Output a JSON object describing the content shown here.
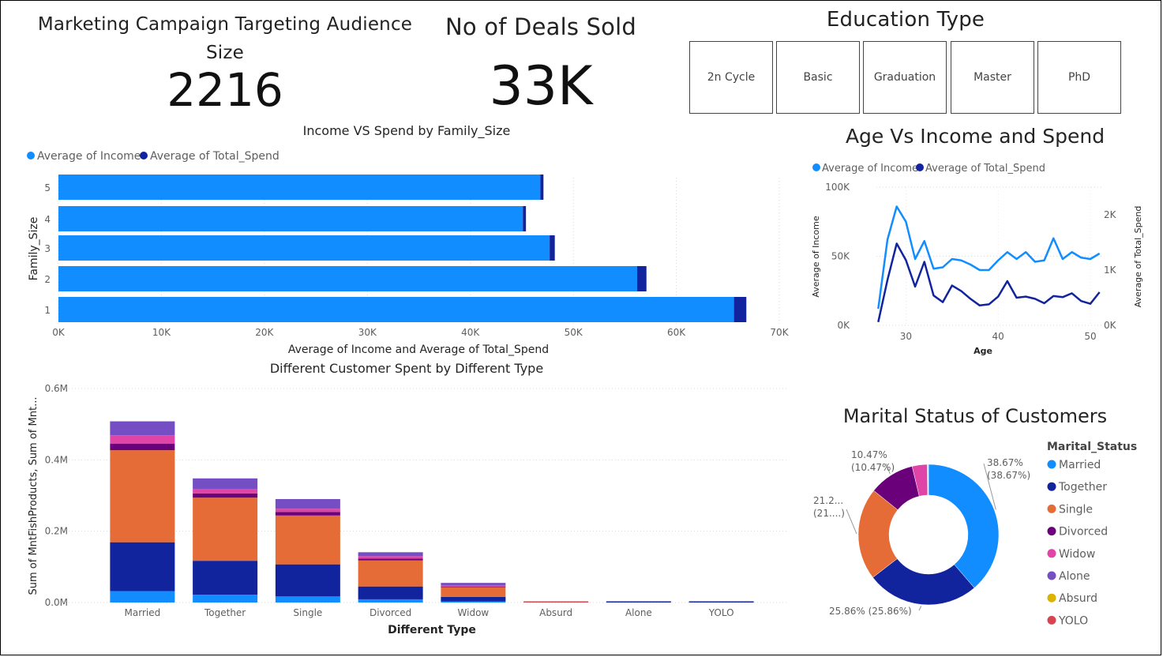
{
  "kpis": {
    "audience": {
      "title": "Marketing Campaign Targeting Audience Size",
      "value": "2216"
    },
    "deals": {
      "title": "No of Deals Sold",
      "value": "33K"
    }
  },
  "slicer": {
    "title": "Education Type",
    "options": [
      "2n Cycle",
      "Basic",
      "Graduation",
      "Master",
      "PhD"
    ]
  },
  "colors": {
    "income": "#118DFF",
    "spend": "#12239E",
    "married": "#118DFF",
    "together": "#12239E",
    "single": "#E66C37",
    "divorced": "#6B007B",
    "widow": "#E044A7",
    "alone": "#744EC2",
    "absurd": "#D9B300",
    "yolo": "#D64550"
  },
  "chart_data": [
    {
      "id": "family",
      "type": "bar",
      "orientation": "horizontal",
      "stacked": true,
      "title": "Income VS Spend by Family_Size",
      "xlabel": "Average of Income and Average of Total_Spend",
      "ylabel": "Family_Size",
      "categories": [
        "5",
        "4",
        "3",
        "2",
        "1"
      ],
      "series": [
        {
          "name": "Average of Income",
          "values": [
            46800,
            45100,
            47700,
            56200,
            65600
          ]
        },
        {
          "name": "Average of Total_Spend",
          "values": [
            300,
            300,
            500,
            900,
            1200
          ]
        }
      ],
      "xlim": [
        0,
        70000
      ],
      "xticks": [
        "0K",
        "10K",
        "20K",
        "30K",
        "40K",
        "50K",
        "60K",
        "70K"
      ],
      "legend": "top-left"
    },
    {
      "id": "age",
      "type": "line",
      "title": "Age Vs Income and Spend",
      "xlabel": "Age",
      "ylabel": "Average of Income",
      "y2label": "Average of Total_Spend",
      "x": [
        27,
        28,
        29,
        30,
        31,
        32,
        33,
        34,
        35,
        36,
        37,
        38,
        39,
        40,
        41,
        42,
        43,
        44,
        45,
        46,
        47,
        48,
        49,
        50,
        51
      ],
      "series": [
        {
          "name": "Average of Income",
          "axis": "left",
          "values": [
            12000,
            62000,
            86000,
            75000,
            48000,
            61000,
            41000,
            42000,
            48000,
            47000,
            44000,
            40000,
            40000,
            47000,
            53000,
            48000,
            53000,
            46000,
            47000,
            63000,
            48000,
            53000,
            49000,
            48000,
            52000
          ]
        },
        {
          "name": "Average of Total_Spend",
          "axis": "right",
          "values": [
            60,
            820,
            1480,
            1180,
            700,
            1150,
            540,
            420,
            720,
            620,
            480,
            360,
            380,
            520,
            800,
            500,
            520,
            480,
            400,
            530,
            510,
            580,
            440,
            390,
            600
          ]
        }
      ],
      "xlim": [
        26.8,
        51.2
      ],
      "ylim": [
        0,
        100000
      ],
      "y2lim": [
        0,
        2500
      ],
      "xticks": [
        "30",
        "40",
        "50"
      ],
      "yticks": [
        "0K",
        "50K",
        "100K"
      ],
      "y2ticks": [
        "0K",
        "1K",
        "2K"
      ],
      "legend": "top-left"
    },
    {
      "id": "type",
      "type": "bar",
      "orientation": "vertical",
      "stacked": true,
      "title": "Different Customer Spent by Different Type",
      "xlabel": "Different Type",
      "ylabel": "Sum of MntFishProducts, Sum of Mnt...",
      "categories": [
        "Married",
        "Together",
        "Single",
        "Divorced",
        "Widow",
        "Absurd",
        "Alone",
        "YOLO"
      ],
      "series": [
        {
          "name": "s1",
          "values": [
            32000,
            22000,
            17000,
            9000,
            3000,
            0,
            0,
            0
          ]
        },
        {
          "name": "s2",
          "values": [
            137000,
            95000,
            90000,
            36000,
            13000,
            0,
            0,
            0
          ]
        },
        {
          "name": "s3",
          "values": [
            258000,
            177000,
            137000,
            73000,
            27000,
            2000,
            1000,
            1000
          ]
        },
        {
          "name": "s4",
          "values": [
            18000,
            12000,
            10000,
            5000,
            2000,
            0,
            0,
            0
          ]
        },
        {
          "name": "s5",
          "values": [
            24000,
            12000,
            9000,
            7000,
            3000,
            0,
            0,
            0
          ]
        },
        {
          "name": "s6",
          "values": [
            39000,
            30000,
            27000,
            11000,
            7000,
            0,
            0,
            0
          ]
        }
      ],
      "ylim": [
        0,
        600000
      ],
      "yticks": [
        "0.0M",
        "0.2M",
        "0.4M",
        "0.6M"
      ]
    },
    {
      "id": "marital",
      "type": "pie",
      "donut": true,
      "title": "Marital Status of Customers",
      "legend_title": "Marital_Status",
      "labels": [
        "Married",
        "Together",
        "Single",
        "Divorced",
        "Widow",
        "Alone",
        "Absurd",
        "YOLO"
      ],
      "values": [
        38.67,
        25.86,
        21.2,
        10.47,
        3.43,
        0.14,
        0.09,
        0.09
      ],
      "data_labels": [
        {
          "l1": "38.67%",
          "l2": "(38.67%)"
        },
        {
          "l1": "25.86% (25.86%)",
          "l2": ""
        },
        {
          "l1": "21.2...",
          "l2": "(21....)"
        },
        {
          "l1": "10.47%",
          "l2": "(10.47%)"
        }
      ],
      "legend": "right"
    }
  ]
}
